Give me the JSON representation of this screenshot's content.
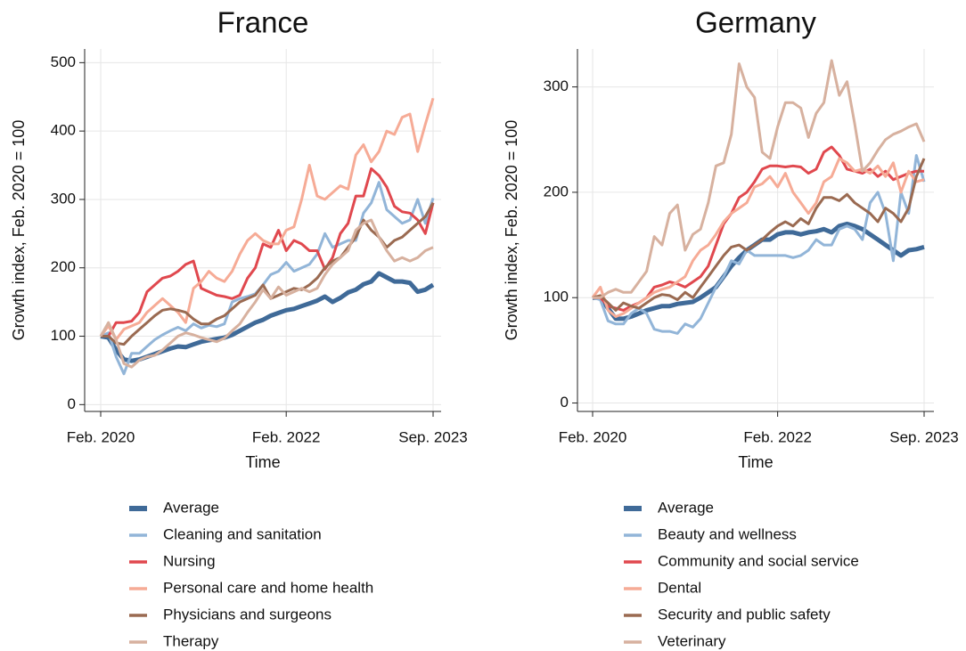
{
  "chart_data": [
    {
      "type": "line",
      "title": "France",
      "xlabel": "Time",
      "ylabel": "Growth index, Feb. 2020 = 100",
      "x": [
        "2020-02",
        "2020-03",
        "2020-04",
        "2020-05",
        "2020-06",
        "2020-07",
        "2020-08",
        "2020-09",
        "2020-10",
        "2020-11",
        "2020-12",
        "2021-01",
        "2021-02",
        "2021-03",
        "2021-04",
        "2021-05",
        "2021-06",
        "2021-07",
        "2021-08",
        "2021-09",
        "2021-10",
        "2021-11",
        "2021-12",
        "2022-01",
        "2022-02",
        "2022-03",
        "2022-04",
        "2022-05",
        "2022-06",
        "2022-07",
        "2022-08",
        "2022-09",
        "2022-10",
        "2022-11",
        "2022-12",
        "2023-01",
        "2023-02",
        "2023-03",
        "2023-04",
        "2023-05",
        "2023-06",
        "2023-07",
        "2023-08",
        "2023-09"
      ],
      "xticks": [
        {
          "value": "2020-02",
          "label": "Feb. 2020"
        },
        {
          "value": "2022-02",
          "label": "Feb. 2022"
        },
        {
          "value": "2023-09",
          "label": "Sep. 2023"
        }
      ],
      "ylim": [
        -10,
        520
      ],
      "yticks": [
        0,
        100,
        200,
        300,
        400,
        500
      ],
      "grid": true,
      "series": [
        {
          "name": "Average",
          "color": "#3f6a98",
          "values": [
            100,
            98,
            80,
            66,
            64,
            66,
            70,
            74,
            78,
            82,
            85,
            84,
            88,
            92,
            94,
            96,
            98,
            102,
            108,
            114,
            120,
            124,
            130,
            134,
            138,
            140,
            144,
            148,
            152,
            158,
            150,
            156,
            164,
            168,
            176,
            180,
            192,
            186,
            180,
            180,
            178,
            165,
            168,
            175
          ]
        },
        {
          "name": "Cleaning and sanitation",
          "color": "#92b5d8",
          "values": [
            100,
            105,
            70,
            45,
            75,
            75,
            85,
            95,
            102,
            108,
            113,
            108,
            118,
            112,
            116,
            114,
            118,
            150,
            155,
            158,
            162,
            175,
            190,
            195,
            208,
            195,
            200,
            205,
            220,
            250,
            230,
            235,
            240,
            240,
            280,
            295,
            325,
            285,
            275,
            265,
            270,
            300,
            265,
            302
          ]
        },
        {
          "name": "Nursing",
          "color": "#e0484e",
          "values": [
            100,
            100,
            120,
            120,
            122,
            135,
            165,
            175,
            185,
            188,
            195,
            205,
            210,
            170,
            165,
            160,
            158,
            155,
            160,
            185,
            200,
            235,
            230,
            255,
            225,
            240,
            235,
            225,
            225,
            198,
            215,
            250,
            265,
            305,
            305,
            345,
            335,
            318,
            290,
            282,
            280,
            270,
            250,
            295
          ]
        },
        {
          "name": "Personal care and home health",
          "color": "#f6ab96",
          "values": [
            100,
            115,
            95,
            110,
            115,
            120,
            135,
            145,
            155,
            145,
            135,
            120,
            170,
            180,
            195,
            185,
            180,
            195,
            220,
            240,
            250,
            240,
            235,
            235,
            255,
            260,
            300,
            350,
            305,
            300,
            310,
            320,
            315,
            365,
            380,
            355,
            370,
            400,
            395,
            420,
            425,
            370,
            410,
            448
          ]
        },
        {
          "name": "Physicians and surgeons",
          "color": "#9a6a51",
          "values": [
            100,
            100,
            90,
            88,
            100,
            110,
            120,
            130,
            138,
            140,
            138,
            135,
            125,
            118,
            118,
            125,
            130,
            140,
            150,
            155,
            160,
            175,
            155,
            160,
            165,
            170,
            168,
            175,
            185,
            200,
            210,
            215,
            230,
            245,
            270,
            255,
            245,
            230,
            240,
            245,
            255,
            265,
            275,
            295
          ]
        },
        {
          "name": "Therapy",
          "color": "#d7b19f",
          "values": [
            100,
            120,
            95,
            60,
            55,
            65,
            70,
            72,
            80,
            90,
            100,
            105,
            102,
            98,
            95,
            92,
            97,
            108,
            118,
            135,
            150,
            168,
            155,
            172,
            160,
            165,
            170,
            165,
            170,
            190,
            205,
            215,
            225,
            255,
            265,
            270,
            245,
            225,
            210,
            215,
            210,
            215,
            225,
            230
          ]
        }
      ]
    },
    {
      "type": "line",
      "title": "Germany",
      "xlabel": "Time",
      "ylabel": "Growth index, Feb. 2020 = 100",
      "x": [
        "2020-02",
        "2020-03",
        "2020-04",
        "2020-05",
        "2020-06",
        "2020-07",
        "2020-08",
        "2020-09",
        "2020-10",
        "2020-11",
        "2020-12",
        "2021-01",
        "2021-02",
        "2021-03",
        "2021-04",
        "2021-05",
        "2021-06",
        "2021-07",
        "2021-08",
        "2021-09",
        "2021-10",
        "2021-11",
        "2021-12",
        "2022-01",
        "2022-02",
        "2022-03",
        "2022-04",
        "2022-05",
        "2022-06",
        "2022-07",
        "2022-08",
        "2022-09",
        "2022-10",
        "2022-11",
        "2022-12",
        "2023-01",
        "2023-02",
        "2023-03",
        "2023-04",
        "2023-05",
        "2023-06",
        "2023-07",
        "2023-08",
        "2023-09"
      ],
      "xticks": [
        {
          "value": "2020-02",
          "label": "Feb. 2020"
        },
        {
          "value": "2022-02",
          "label": "Feb. 2022"
        },
        {
          "value": "2023-09",
          "label": "Sep. 2023"
        }
      ],
      "ylim": [
        -8,
        336
      ],
      "yticks": [
        0,
        100,
        200,
        300
      ],
      "grid": true,
      "series": [
        {
          "name": "Average",
          "color": "#3f6a98",
          "values": [
            100,
            100,
            90,
            80,
            80,
            82,
            85,
            88,
            90,
            92,
            92,
            94,
            95,
            96,
            100,
            105,
            110,
            120,
            130,
            138,
            145,
            150,
            155,
            155,
            160,
            162,
            162,
            160,
            162,
            163,
            165,
            162,
            168,
            170,
            168,
            165,
            160,
            155,
            150,
            145,
            140,
            145,
            146,
            148
          ]
        },
        {
          "name": "Beauty and wellness",
          "color": "#92b5d8",
          "values": [
            100,
            98,
            78,
            75,
            75,
            85,
            90,
            85,
            70,
            68,
            68,
            66,
            75,
            72,
            80,
            95,
            110,
            120,
            135,
            132,
            145,
            140,
            140,
            140,
            140,
            140,
            138,
            140,
            145,
            155,
            150,
            150,
            165,
            168,
            165,
            155,
            190,
            200,
            180,
            135,
            200,
            180,
            235,
            210
          ]
        },
        {
          "name": "Community and social service",
          "color": "#e0484e",
          "values": [
            100,
            100,
            92,
            90,
            88,
            92,
            95,
            100,
            110,
            112,
            115,
            113,
            110,
            115,
            120,
            130,
            150,
            170,
            180,
            195,
            200,
            210,
            222,
            225,
            225,
            224,
            225,
            224,
            218,
            222,
            238,
            243,
            235,
            222,
            220,
            218,
            222,
            215,
            220,
            212,
            215,
            218,
            220,
            220
          ]
        },
        {
          "name": "Dental",
          "color": "#f6ab96",
          "values": [
            100,
            110,
            88,
            82,
            85,
            90,
            95,
            100,
            105,
            108,
            110,
            115,
            120,
            135,
            145,
            150,
            160,
            172,
            180,
            185,
            190,
            205,
            208,
            215,
            205,
            218,
            200,
            190,
            180,
            190,
            210,
            215,
            232,
            228,
            220,
            222,
            218,
            225,
            215,
            228,
            200,
            220,
            210,
            212
          ]
        },
        {
          "name": "Security and public safety",
          "color": "#9a6a51",
          "values": [
            100,
            102,
            95,
            88,
            95,
            92,
            90,
            95,
            100,
            103,
            102,
            98,
            105,
            100,
            110,
            120,
            130,
            140,
            148,
            150,
            145,
            150,
            155,
            162,
            168,
            172,
            168,
            175,
            170,
            185,
            195,
            195,
            192,
            198,
            190,
            185,
            180,
            172,
            185,
            180,
            172,
            185,
            215,
            232
          ]
        },
        {
          "name": "Veterinary",
          "color": "#d7b19f",
          "values": [
            100,
            100,
            105,
            108,
            105,
            105,
            115,
            125,
            158,
            150,
            180,
            188,
            145,
            160,
            165,
            190,
            225,
            228,
            255,
            322,
            300,
            290,
            238,
            232,
            262,
            285,
            285,
            280,
            252,
            275,
            285,
            325,
            292,
            305,
            265,
            220,
            228,
            240,
            250,
            255,
            258,
            262,
            265,
            248
          ]
        }
      ]
    }
  ]
}
